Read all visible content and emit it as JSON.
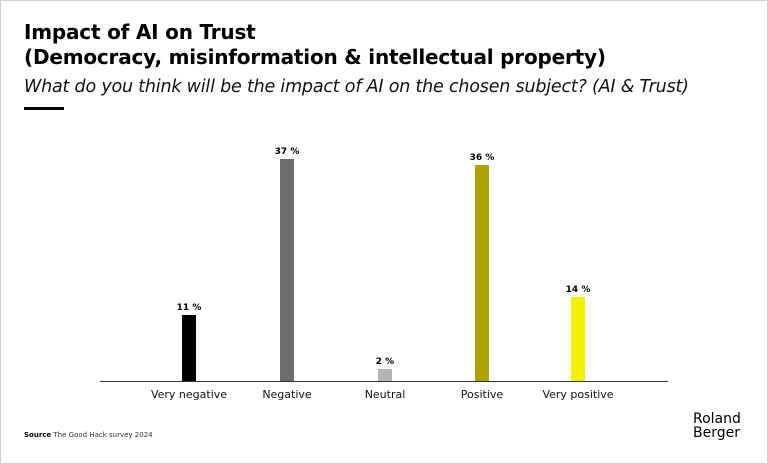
{
  "header": {
    "title_line1": "Impact of AI on Trust",
    "title_line2": "(Democracy, misinformation & intellectual property)",
    "subtitle": "What do you think will be the impact of AI on the chosen subject? (AI & Trust)"
  },
  "chart_data": {
    "type": "bar",
    "title": "Impact of AI on Trust (Democracy, misinformation & intellectual property)",
    "subtitle": "What do you think will be the impact of AI on the chosen subject? (AI & Trust)",
    "categories": [
      "Very negative",
      "Negative",
      "Neutral",
      "Positive",
      "Very positive"
    ],
    "values": [
      11,
      37,
      2,
      36,
      14
    ],
    "labels": [
      "11 %",
      "37 %",
      "2 %",
      "36 %",
      "14 %"
    ],
    "colors": [
      "#000000",
      "#6d6d70",
      "#b4b4b7",
      "#b0a200",
      "#f5f000"
    ],
    "unit": "%",
    "xlabel": "",
    "ylabel": "",
    "ylim": [
      0,
      40
    ],
    "grid": false,
    "legend": "none"
  },
  "footer": {
    "source_label": "Source",
    "source_text": "The Good Hack survey 2024",
    "logo_line1": "Roland",
    "logo_line2": "Berger"
  }
}
